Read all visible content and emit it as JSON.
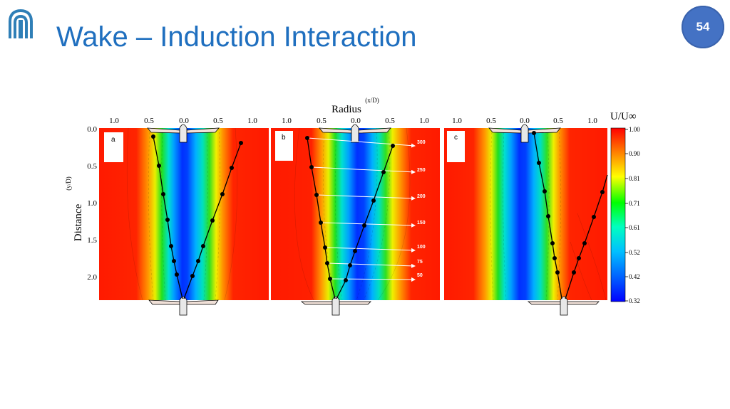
{
  "slide": {
    "title": "Wake – Induction Interaction",
    "page_number": "54",
    "logo": "university-logo-icon"
  },
  "figure": {
    "top_axis_label": "Radius",
    "top_axis_unit": "(x/D)",
    "left_axis_label": "Distance",
    "left_axis_unit": "(y/D)",
    "top_ticks": [
      "1.0",
      "0.5",
      "0.0",
      "0.5",
      "1.0"
    ],
    "left_ticks": [
      "0.0",
      "0.5",
      "1.0",
      "1.5",
      "2.0"
    ],
    "panels": [
      "a",
      "b",
      "c"
    ],
    "speed_labels": [
      "300",
      "250",
      "200",
      "150",
      "100",
      "75",
      "50"
    ],
    "colorbar": {
      "title": "U/U∞",
      "ticks": [
        "1.00",
        "0.90",
        "0.81",
        "0.71",
        "0.61",
        "0.52",
        "0.42",
        "0.32"
      ]
    }
  },
  "colors": {
    "title": "#1f6fbf",
    "badge": "#4472c4",
    "contour_high": "#ff1a00",
    "contour_low": "#0022ff"
  }
}
